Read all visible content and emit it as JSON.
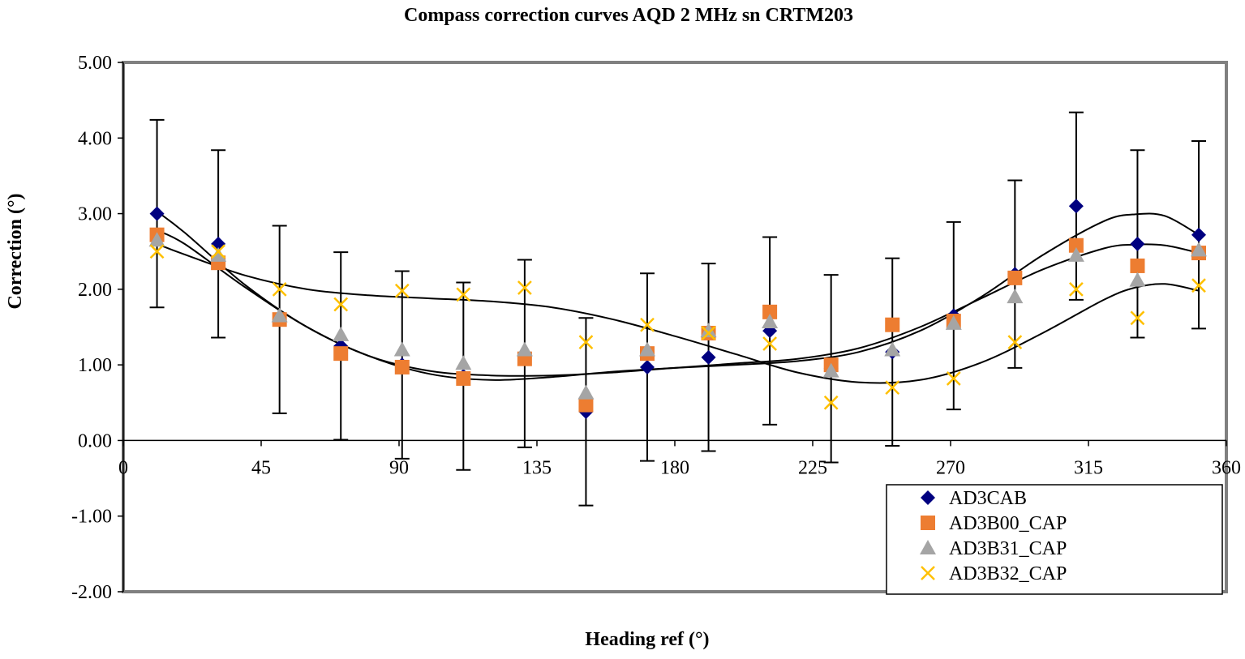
{
  "chart_data": {
    "type": "scatter",
    "title": "Compass correction curves AQD 2 MHz sn CRTM203",
    "xlabel": "Heading ref (°)",
    "ylabel": "Correction (°)",
    "xlim": [
      0,
      360
    ],
    "ylim": [
      -2,
      5
    ],
    "x_ticks": [
      0,
      45,
      90,
      135,
      180,
      225,
      270,
      315,
      360
    ],
    "y_ticks": [
      5,
      4,
      3,
      2,
      1,
      0,
      -1,
      -2
    ],
    "x_tick_labels": [
      "0",
      "45",
      "90",
      "135",
      "180",
      "225",
      "270",
      "315",
      "360"
    ],
    "y_tick_labels": [
      "5.00",
      "4.00",
      "3.00",
      "2.00",
      "1.00",
      "0.00",
      "-1.00",
      "-2.00"
    ],
    "grid": false,
    "legend_position": "bottom-right",
    "x": [
      11,
      31,
      51,
      71,
      91,
      111,
      131,
      151,
      171,
      191,
      211,
      231,
      251,
      271,
      291,
      311,
      331,
      351
    ],
    "series": [
      {
        "name": "AD3CAB",
        "marker": "diamond",
        "color": "#000080",
        "values": [
          3.0,
          2.6,
          1.6,
          1.25,
          1.0,
          0.85,
          1.15,
          0.38,
          0.97,
          1.1,
          1.45,
          0.95,
          1.17,
          1.65,
          2.2,
          3.1,
          2.6,
          2.72
        ],
        "error": [
          1.24,
          1.24,
          1.24,
          1.24,
          1.24,
          1.24,
          1.24,
          1.24,
          1.24,
          1.24,
          1.24,
          1.24,
          1.24,
          1.24,
          1.24,
          1.24,
          1.24,
          1.24
        ]
      },
      {
        "name": "AD3B00_CAP",
        "marker": "square",
        "color": "#ED7D31",
        "values": [
          2.72,
          2.35,
          1.6,
          1.15,
          0.97,
          0.82,
          1.08,
          0.47,
          1.15,
          1.42,
          1.7,
          1.0,
          1.53,
          1.58,
          2.15,
          2.58,
          2.31,
          2.48
        ]
      },
      {
        "name": "AD3B31_CAP",
        "marker": "triangle",
        "color": "#A5A5A5",
        "values": [
          2.65,
          2.45,
          1.65,
          1.4,
          1.2,
          1.02,
          1.2,
          0.63,
          1.2,
          1.45,
          1.57,
          0.92,
          1.2,
          1.55,
          1.9,
          2.45,
          2.12,
          2.52
        ]
      },
      {
        "name": "AD3B32_CAP",
        "marker": "x",
        "color": "#FFC000",
        "values": [
          2.5,
          2.5,
          2.0,
          1.8,
          1.98,
          1.93,
          2.02,
          1.3,
          1.53,
          1.42,
          1.28,
          0.5,
          0.7,
          0.82,
          1.3,
          2.0,
          1.62,
          2.05
        ]
      }
    ],
    "trendlines": [
      {
        "series": "AD3CAB",
        "x": [
          11,
          20,
          40,
          60,
          80,
          100,
          120,
          140,
          160,
          180,
          200,
          220,
          240,
          260,
          280,
          300,
          320,
          330,
          340,
          351
        ],
        "y": [
          3.03,
          2.75,
          2.05,
          1.5,
          1.12,
          0.88,
          0.8,
          0.84,
          0.91,
          0.96,
          1.0,
          1.05,
          1.17,
          1.45,
          1.9,
          2.45,
          2.9,
          2.99,
          2.97,
          2.72
        ]
      },
      {
        "series": "AD3B31_CAP",
        "x": [
          11,
          20,
          40,
          60,
          80,
          100,
          120,
          140,
          160,
          180,
          200,
          220,
          240,
          260,
          280,
          300,
          320,
          330,
          340,
          351
        ],
        "y": [
          2.78,
          2.6,
          2.02,
          1.5,
          1.12,
          0.92,
          0.86,
          0.86,
          0.9,
          0.96,
          1.02,
          1.08,
          1.22,
          1.5,
          1.88,
          2.26,
          2.54,
          2.59,
          2.58,
          2.48
        ]
      },
      {
        "series": "AD3B32_CAP",
        "x": [
          11,
          20,
          40,
          60,
          80,
          100,
          120,
          140,
          160,
          180,
          200,
          220,
          240,
          260,
          280,
          300,
          320,
          330,
          340,
          351
        ],
        "y": [
          2.6,
          2.46,
          2.18,
          2.0,
          1.92,
          1.88,
          1.84,
          1.76,
          1.6,
          1.38,
          1.14,
          0.9,
          0.77,
          0.8,
          1.03,
          1.42,
          1.86,
          2.02,
          2.07,
          1.98
        ]
      }
    ]
  }
}
